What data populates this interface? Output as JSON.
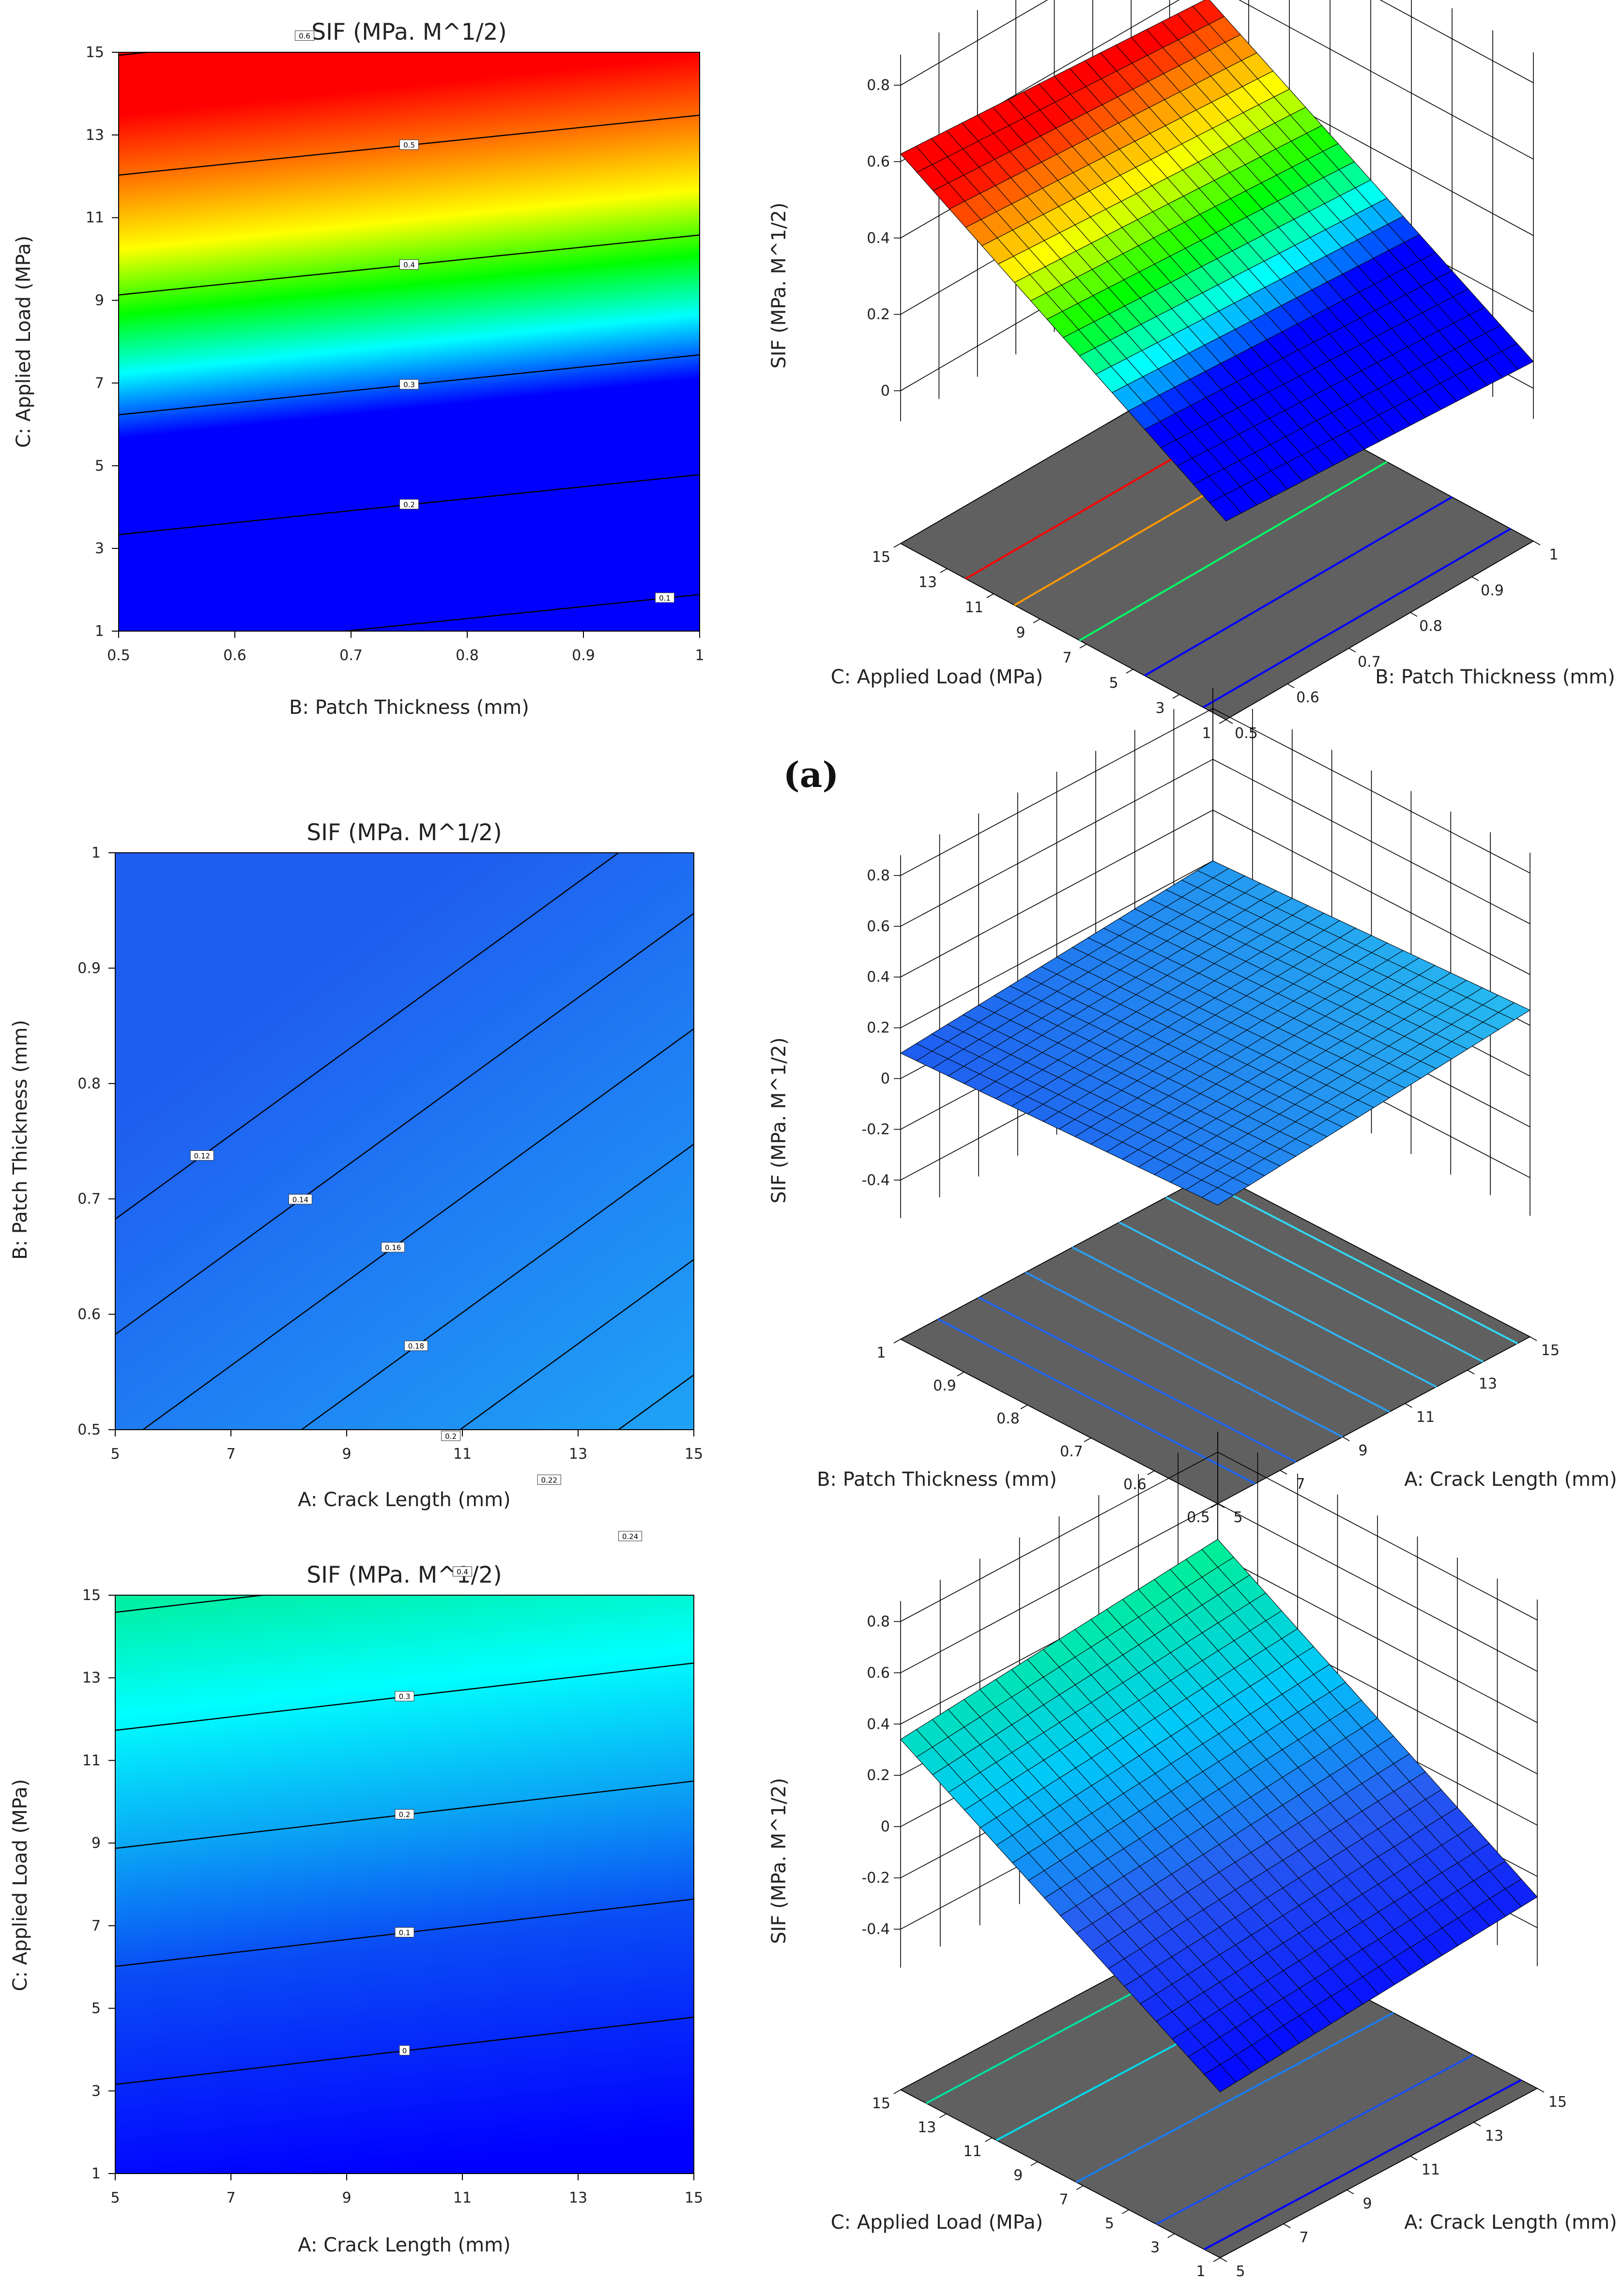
{
  "panel_label": "(a)",
  "chart_data": [
    {
      "type": "contour",
      "title": "SIF (MPa. M^1/2)",
      "xlabel": "B: Patch Thickness (mm)",
      "ylabel": "C: Applied Load (MPa)",
      "xlim": [
        0.5,
        1
      ],
      "ylim": [
        1,
        15
      ],
      "xticks": [
        "0.5",
        "0.6",
        "0.7",
        "0.8",
        "0.9",
        "1"
      ],
      "yticks": [
        "1",
        "3",
        "5",
        "7",
        "9",
        "11",
        "13",
        "15"
      ],
      "model": {
        "intercept": 0.135,
        "slope_x": -0.1,
        "slope_y": 0.0345
      },
      "contour_levels": [
        0.1,
        0.2,
        0.3,
        0.4,
        0.5,
        0.6
      ],
      "contour_labels": [
        "0.1",
        "0.2",
        "0.3",
        "0.4",
        "0.5",
        "0.6"
      ],
      "colormap": {
        "min": 0.1,
        "max": 0.55,
        "stops": [
          [
            "0",
            "#0000ff"
          ],
          [
            "0.40",
            "#0000ff"
          ],
          [
            "0.52",
            "#00ffff"
          ],
          [
            "0.63",
            "#00ff00"
          ],
          [
            "0.75",
            "#ffff00"
          ],
          [
            "0.87",
            "#ff8000"
          ],
          [
            "1",
            "#ff0000"
          ]
        ]
      }
    },
    {
      "type": "surface",
      "zlabel": "SIF (MPa. M^1/2)",
      "xlabel": "B: Patch Thickness (mm)",
      "ylabel": "C: Applied Load (MPa)",
      "zticks": [
        "0",
        "0.2",
        "0.4",
        "0.6",
        "0.8"
      ],
      "xticks": [
        "0.5",
        "0.6",
        "0.7",
        "0.8",
        "0.9",
        "1"
      ],
      "yticks": [
        "1",
        "3",
        "5",
        "7",
        "9",
        "11",
        "13",
        "15"
      ],
      "corner_values": {
        "low_low": 0.12,
        "high_low": 0.07,
        "low_high": 0.62,
        "high_high": 0.56
      }
    },
    {
      "type": "contour",
      "title": "SIF (MPa. M^1/2)",
      "xlabel": "A: Crack Length (mm)",
      "ylabel": "B: Patch Thickness (mm)",
      "xlim": [
        5,
        15
      ],
      "ylim": [
        0.5,
        1
      ],
      "xticks": [
        "5",
        "7",
        "9",
        "11",
        "13",
        "15"
      ],
      "yticks": [
        "0.5",
        "0.6",
        "0.7",
        "0.8",
        "0.9",
        "1"
      ],
      "model": {
        "intercept": 0.22,
        "slope_x": 0.0073,
        "slope_y": -0.2
      },
      "contour_levels": [
        0.12,
        0.14,
        0.16,
        0.18,
        0.2,
        0.22,
        0.24
      ],
      "contour_labels": [
        "0.12",
        "0.14",
        "0.16",
        "0.18",
        "0.2",
        "0.22",
        "0.24"
      ],
      "colormap": {
        "min": 0.1,
        "max": 0.26,
        "stops": [
          [
            "0",
            "#1f5cf0"
          ],
          [
            "1",
            "#1fb4f8"
          ]
        ]
      }
    },
    {
      "type": "surface",
      "zlabel": "SIF (MPa. M^1/2)",
      "xlabel": "A: Crack Length (mm)",
      "ylabel": "B: Patch Thickness (mm)",
      "zticks": [
        "-0.4",
        "-0.2",
        "0",
        "0.2",
        "0.4",
        "0.6",
        "0.8"
      ],
      "xticks": [
        "5",
        "7",
        "9",
        "11",
        "13",
        "15"
      ],
      "yticks": [
        "0.5",
        "0.6",
        "0.7",
        "0.8",
        "0.9",
        "1"
      ],
      "corner_values": {
        "low_low": 0.15,
        "high_low": 0.26,
        "low_high": 0.1,
        "high_high": 0.2
      }
    },
    {
      "type": "contour",
      "title": "SIF (MPa. M^1/2)",
      "xlabel": "A: Crack Length (mm)",
      "ylabel": "C: Applied Load (MPa)",
      "xlim": [
        5,
        15
      ],
      "ylim": [
        1,
        15
      ],
      "xticks": [
        "5",
        "7",
        "9",
        "11",
        "13",
        "15"
      ],
      "yticks": [
        "1",
        "3",
        "5",
        "7",
        "9",
        "11",
        "13",
        "15"
      ],
      "model": {
        "intercept": -0.082,
        "slope_x": -0.0057,
        "slope_y": 0.035
      },
      "contour_levels": [
        0,
        0.1,
        0.2,
        0.3,
        0.4
      ],
      "contour_labels": [
        "0",
        "0.1",
        "0.2",
        "0.3",
        "0.4"
      ],
      "colormap": {
        "min": -0.1,
        "max": 0.45,
        "stops": [
          [
            "0",
            "#0000ff"
          ],
          [
            "0.35",
            "#0a4cf5"
          ],
          [
            "0.55",
            "#0aa8f5"
          ],
          [
            "0.75",
            "#00ffff"
          ],
          [
            "1",
            "#00e87a"
          ]
        ]
      }
    },
    {
      "type": "surface",
      "zlabel": "SIF (MPa. M^1/2)",
      "xlabel": "A: Crack Length (mm)",
      "ylabel": "C: Applied Load (MPa)",
      "zticks": [
        "-0.4",
        "-0.2",
        "0",
        "0.2",
        "0.4",
        "0.6",
        "0.8"
      ],
      "xticks": [
        "5",
        "7",
        "9",
        "11",
        "13",
        "15"
      ],
      "yticks": [
        "1",
        "3",
        "5",
        "7",
        "9",
        "11",
        "13",
        "15"
      ],
      "corner_values": {
        "low_low": -0.38,
        "high_low": -0.28,
        "low_high": 0.34,
        "high_high": 0.46
      }
    }
  ]
}
